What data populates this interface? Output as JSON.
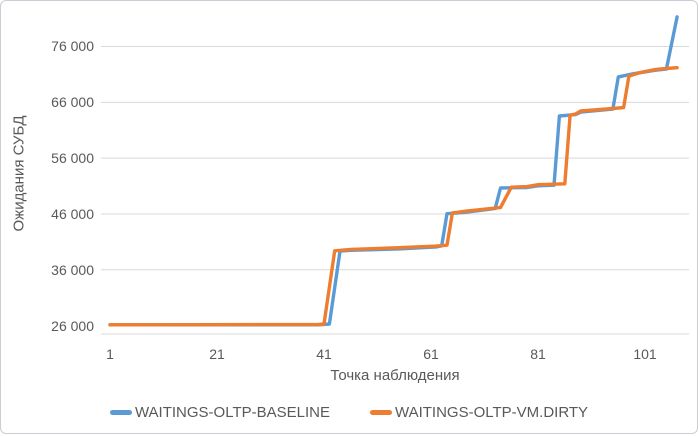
{
  "chart": {
    "background": "#ffffff",
    "border_color": "#c9ced6",
    "grid_color": "#d9d9d9",
    "axis_line_color": "#d9d9d9",
    "text_color": "#595959"
  },
  "chart_data": {
    "type": "line",
    "title": "",
    "xlabel": "Точка наблюдения",
    "ylabel": "Ожидания СУБД",
    "x_ticks": [
      1,
      21,
      41,
      61,
      81,
      101
    ],
    "y_ticks": [
      26000,
      36000,
      46000,
      56000,
      66000,
      76000
    ],
    "y_tick_labels": [
      "26 000",
      "36 000",
      "46 000",
      "56 000",
      "66 000",
      "76 000"
    ],
    "xlim": [
      1,
      107
    ],
    "ylim": [
      24500,
      82000
    ],
    "grid": "horizontal",
    "legend_position": "bottom",
    "interpolation": "linear-between-breakpoints",
    "series": [
      {
        "name": "WAITINGS-OLTP-BASELINE",
        "color": "#5b9bd5",
        "points": [
          [
            1,
            26150
          ],
          [
            40,
            26150
          ],
          [
            42,
            26300
          ],
          [
            44,
            39350
          ],
          [
            46,
            39500
          ],
          [
            55,
            39750
          ],
          [
            62,
            40100
          ],
          [
            63,
            40300
          ],
          [
            64,
            46050
          ],
          [
            67,
            46250
          ],
          [
            72,
            46850
          ],
          [
            73,
            47000
          ],
          [
            74,
            50650
          ],
          [
            79,
            50750
          ],
          [
            81,
            51050
          ],
          [
            84,
            51150
          ],
          [
            85,
            63550
          ],
          [
            88,
            63800
          ],
          [
            89,
            64250
          ],
          [
            94,
            64700
          ],
          [
            95,
            64800
          ],
          [
            96,
            70550
          ],
          [
            99,
            71150
          ],
          [
            103,
            71750
          ],
          [
            105,
            71950
          ],
          [
            107,
            81300
          ]
        ]
      },
      {
        "name": "WAITINGS-OLTP-VM.DIRTY",
        "color": "#ed7d31",
        "points": [
          [
            1,
            26150
          ],
          [
            40,
            26200
          ],
          [
            41,
            26300
          ],
          [
            43,
            39400
          ],
          [
            46,
            39650
          ],
          [
            55,
            39950
          ],
          [
            62,
            40250
          ],
          [
            64,
            40400
          ],
          [
            65,
            46200
          ],
          [
            67,
            46450
          ],
          [
            73,
            47050
          ],
          [
            74,
            47150
          ],
          [
            76,
            50800
          ],
          [
            79,
            50900
          ],
          [
            81,
            51250
          ],
          [
            86,
            51400
          ],
          [
            87,
            63700
          ],
          [
            88,
            63900
          ],
          [
            89,
            64450
          ],
          [
            95,
            64900
          ],
          [
            97,
            65050
          ],
          [
            98,
            70700
          ],
          [
            100,
            71300
          ],
          [
            103,
            71900
          ],
          [
            105,
            72050
          ],
          [
            107,
            72200
          ]
        ]
      }
    ]
  }
}
